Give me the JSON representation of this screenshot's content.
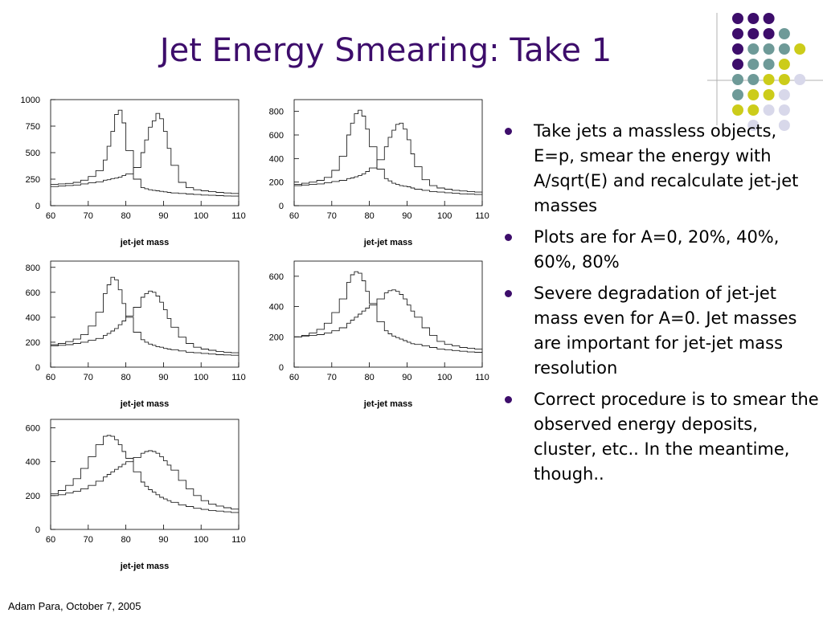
{
  "title": "Jet Energy Smearing: Take 1",
  "footer": "Adam Para, October 7, 2005",
  "bullets": [
    "Take jets a massless objects, E=p, smear the energy with A/sqrt(E) and recalculate jet-jet masses",
    "Plots are for A=0, 20%, 40%, 60%, 80%",
    "Severe degradation of jet-jet mass even for A=0. Jet masses are important for jet-jet mass resolution",
    "Correct procedure is to smear the observed energy deposits, cluster, etc.. In the meantime, though.."
  ],
  "colors": {
    "title": "#3d0d6b",
    "bullet": "#3d0d6b",
    "dot_purple": "#3d0d6b",
    "dot_teal": "#6e9a98",
    "dot_yellow": "#cccc1a",
    "dot_lavender": "#d8d8ea",
    "rule": "#b0b0b0"
  },
  "decoration": {
    "dot_grid": [
      [
        "purple",
        "purple",
        "purple",
        "",
        ""
      ],
      [
        "purple",
        "purple",
        "purple",
        "teal",
        ""
      ],
      [
        "purple",
        "teal",
        "teal",
        "teal",
        "yellow"
      ],
      [
        "purple",
        "teal",
        "teal",
        "yellow",
        ""
      ],
      [
        "teal",
        "teal",
        "yellow",
        "yellow",
        "lavender"
      ],
      [
        "teal",
        "yellow",
        "yellow",
        "lavender",
        ""
      ],
      [
        "yellow",
        "yellow",
        "lavender",
        "lavender",
        ""
      ],
      [
        "",
        "lavender",
        "",
        "lavender",
        ""
      ]
    ]
  },
  "chart_data": [
    {
      "type": "line",
      "xlabel": "jet-jet mass",
      "xlim": [
        60,
        110
      ],
      "ylim": [
        0,
        1000
      ],
      "xticks": [
        60,
        70,
        80,
        90,
        100,
        110
      ],
      "yticks": [
        0,
        250,
        500,
        750,
        1000
      ],
      "x": [
        60,
        62,
        64,
        66,
        68,
        70,
        72,
        74,
        75,
        76,
        77,
        78,
        79,
        80,
        82,
        84,
        85,
        86,
        87,
        88,
        89,
        90,
        91,
        92,
        94,
        96,
        98,
        100,
        102,
        104,
        106,
        108,
        110
      ],
      "series": [
        {
          "values": [
            200,
            205,
            210,
            220,
            240,
            275,
            330,
            430,
            560,
            700,
            860,
            900,
            780,
            520,
            250,
            170,
            160,
            150,
            145,
            140,
            135,
            130,
            125,
            120,
            115,
            110,
            105,
            100,
            98,
            95,
            92,
            90,
            88
          ]
        },
        {
          "values": [
            180,
            185,
            190,
            195,
            205,
            215,
            225,
            240,
            245,
            255,
            260,
            270,
            285,
            300,
            360,
            500,
            620,
            740,
            800,
            870,
            820,
            700,
            540,
            380,
            220,
            170,
            150,
            140,
            132,
            125,
            120,
            115,
            110
          ]
        }
      ]
    },
    {
      "type": "line",
      "xlabel": "jet-jet mass",
      "xlim": [
        60,
        110
      ],
      "ylim": [
        0,
        900
      ],
      "xticks": [
        60,
        70,
        80,
        90,
        100,
        110
      ],
      "yticks": [
        0,
        200,
        400,
        600,
        800
      ],
      "x": [
        60,
        62,
        64,
        66,
        68,
        70,
        72,
        74,
        75,
        76,
        77,
        78,
        79,
        80,
        82,
        84,
        85,
        86,
        87,
        88,
        89,
        90,
        91,
        92,
        94,
        96,
        98,
        100,
        102,
        104,
        106,
        108,
        110
      ],
      "series": [
        {
          "values": [
            180,
            190,
            200,
            215,
            240,
            300,
            420,
            600,
            700,
            780,
            810,
            760,
            650,
            500,
            310,
            230,
            210,
            190,
            180,
            170,
            165,
            160,
            150,
            140,
            130,
            120,
            115,
            110,
            105,
            100,
            98,
            95,
            92
          ]
        },
        {
          "values": [
            170,
            175,
            180,
            185,
            195,
            205,
            215,
            230,
            235,
            245,
            255,
            270,
            290,
            320,
            390,
            500,
            580,
            640,
            690,
            700,
            650,
            560,
            440,
            330,
            220,
            170,
            150,
            140,
            130,
            125,
            120,
            115,
            110
          ]
        }
      ]
    },
    {
      "type": "line",
      "xlabel": "jet-jet mass",
      "xlim": [
        60,
        110
      ],
      "ylim": [
        0,
        850
      ],
      "xticks": [
        60,
        70,
        80,
        90,
        100,
        110
      ],
      "yticks": [
        0,
        200,
        400,
        600,
        800
      ],
      "x": [
        60,
        62,
        64,
        66,
        68,
        70,
        72,
        74,
        75,
        76,
        77,
        78,
        79,
        80,
        82,
        84,
        85,
        86,
        87,
        88,
        89,
        90,
        91,
        92,
        94,
        96,
        98,
        100,
        102,
        104,
        106,
        108,
        110
      ],
      "series": [
        {
          "values": [
            180,
            190,
            205,
            225,
            260,
            330,
            440,
            590,
            660,
            720,
            700,
            620,
            510,
            400,
            280,
            220,
            200,
            185,
            175,
            165,
            160,
            150,
            145,
            140,
            130,
            120,
            115,
            110,
            105,
            100,
            98,
            95,
            92
          ]
        },
        {
          "values": [
            170,
            175,
            180,
            190,
            200,
            215,
            230,
            255,
            270,
            290,
            310,
            340,
            370,
            410,
            480,
            560,
            590,
            610,
            600,
            570,
            520,
            460,
            390,
            320,
            240,
            190,
            160,
            145,
            135,
            125,
            120,
            115,
            110
          ]
        }
      ]
    },
    {
      "type": "line",
      "xlabel": "jet-jet mass",
      "xlim": [
        60,
        110
      ],
      "ylim": [
        0,
        700
      ],
      "xticks": [
        60,
        70,
        80,
        90,
        100,
        110
      ],
      "yticks": [
        0,
        200,
        400,
        600
      ],
      "x": [
        60,
        62,
        64,
        66,
        68,
        70,
        72,
        74,
        75,
        76,
        77,
        78,
        79,
        80,
        82,
        84,
        85,
        86,
        87,
        88,
        89,
        90,
        91,
        92,
        94,
        96,
        98,
        100,
        102,
        104,
        106,
        108,
        110
      ],
      "series": [
        {
          "values": [
            200,
            210,
            225,
            250,
            290,
            360,
            450,
            560,
            610,
            630,
            620,
            570,
            500,
            420,
            300,
            240,
            220,
            205,
            195,
            185,
            175,
            165,
            155,
            150,
            140,
            130,
            120,
            115,
            110,
            105,
            100,
            98,
            95
          ]
        },
        {
          "values": [
            200,
            205,
            210,
            215,
            225,
            240,
            260,
            290,
            310,
            330,
            350,
            370,
            390,
            410,
            450,
            490,
            505,
            510,
            500,
            480,
            450,
            410,
            370,
            330,
            260,
            210,
            170,
            150,
            140,
            130,
            125,
            120,
            115
          ]
        }
      ]
    },
    {
      "type": "line",
      "xlabel": "jet-jet mass",
      "xlim": [
        60,
        110
      ],
      "ylim": [
        0,
        650
      ],
      "xticks": [
        60,
        70,
        80,
        90,
        100,
        110
      ],
      "yticks": [
        0,
        200,
        400,
        600
      ],
      "x": [
        60,
        62,
        64,
        66,
        68,
        70,
        72,
        74,
        75,
        76,
        77,
        78,
        79,
        80,
        82,
        84,
        85,
        86,
        87,
        88,
        89,
        90,
        91,
        92,
        94,
        96,
        98,
        100,
        102,
        104,
        106,
        108,
        110
      ],
      "series": [
        {
          "values": [
            210,
            230,
            260,
            300,
            360,
            430,
            500,
            550,
            555,
            550,
            530,
            500,
            460,
            420,
            340,
            280,
            255,
            235,
            220,
            205,
            190,
            180,
            170,
            160,
            145,
            135,
            125,
            118,
            112,
            108,
            104,
            100,
            98
          ]
        },
        {
          "values": [
            200,
            205,
            215,
            225,
            240,
            260,
            285,
            310,
            325,
            340,
            355,
            370,
            385,
            400,
            425,
            450,
            460,
            465,
            460,
            450,
            430,
            405,
            380,
            350,
            290,
            240,
            200,
            170,
            150,
            138,
            128,
            120,
            115
          ]
        }
      ]
    }
  ]
}
